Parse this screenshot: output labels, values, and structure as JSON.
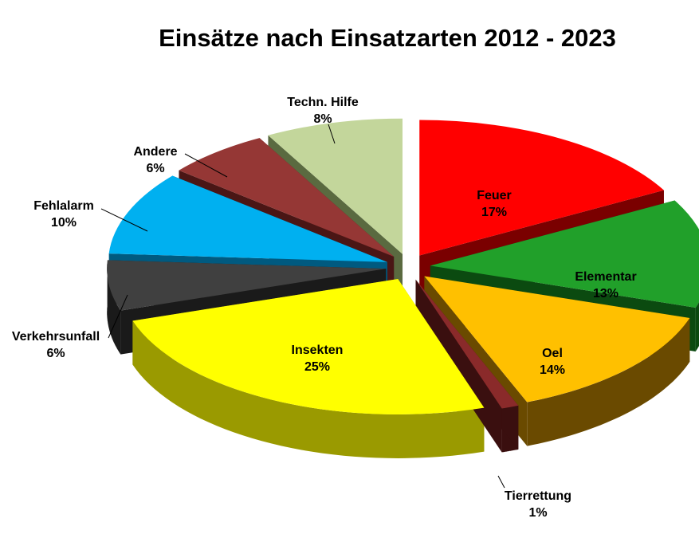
{
  "chart_data": {
    "type": "pie",
    "title": "Einsätze nach Einsatzarten 2012 - 2023",
    "slices": [
      {
        "name": "Feuer",
        "pct_label": "17%",
        "value": 17,
        "color": "#ff0000",
        "side_color": "#7a0000"
      },
      {
        "name": "Elementar",
        "pct_label": "13%",
        "value": 13,
        "color": "#21a02a",
        "side_color": "#0b4a10"
      },
      {
        "name": "Oel",
        "pct_label": "14%",
        "value": 14,
        "color": "#ffc000",
        "side_color": "#6a4a00"
      },
      {
        "name": "Tierrettung",
        "pct_label": "1%",
        "value": 1,
        "color": "#8a2a2a",
        "side_color": "#3a0f0f"
      },
      {
        "name": "Insekten",
        "pct_label": "25%",
        "value": 25,
        "color": "#ffff00",
        "side_color": "#9a9a00"
      },
      {
        "name": "Verkehrsunfall",
        "pct_label": "6%",
        "value": 6,
        "color": "#404040",
        "side_color": "#1a1a1a"
      },
      {
        "name": "Fehlalarm",
        "pct_label": "10%",
        "value": 10,
        "color": "#00b0f0",
        "side_color": "#005a80"
      },
      {
        "name": "Andere",
        "pct_label": "6%",
        "value": 6,
        "color": "#953735",
        "side_color": "#4a1615"
      },
      {
        "name": "Techn. Hilfe",
        "pct_label": "8%",
        "value": 8,
        "color": "#c3d69b",
        "side_color": "#5a6a40"
      }
    ]
  }
}
